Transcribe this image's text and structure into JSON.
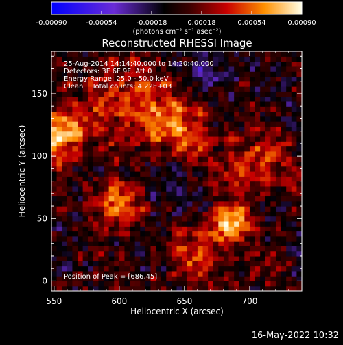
{
  "chart_data": {
    "type": "heatmap",
    "title": "Reconstructed RHESSI Image",
    "info_lines": [
      "25-Aug-2014 14:14:40.000 to 14:20:40.000",
      "Detectors: 3F 6F 9F, Att 0",
      "Energy Range: 25.0 - 50.0 keV",
      "Clean    Total counts: 4.22E+03"
    ],
    "peak_label": "Position of Peak = [686,45]",
    "peak": [
      686,
      45
    ],
    "xlabel": "Heliocentric X (arcsec)",
    "ylabel": "Heliocentric Y (arcsec)",
    "xlim": [
      548,
      740
    ],
    "ylim": [
      -8,
      184
    ],
    "xticks": [
      550,
      600,
      650,
      700
    ],
    "yticks": [
      0,
      50,
      100,
      150
    ],
    "colorbar": {
      "range": [
        -0.0009,
        0.0009
      ],
      "ticks": [
        "-0.00090",
        "-0.00054",
        "-0.00018",
        "0.00018",
        "0.00054",
        "0.00090"
      ],
      "unit_label": "(photons cm⁻² s⁻¹ asec⁻²)"
    },
    "sources": [
      {
        "x": 686,
        "y": 45,
        "value": 0.0009,
        "sigma": 10
      },
      {
        "x": 553,
        "y": 118,
        "value": 0.0008,
        "sigma": 14
      },
      {
        "x": 598,
        "y": 62,
        "value": 0.0007,
        "sigma": 13
      },
      {
        "x": 640,
        "y": 125,
        "value": 0.0005,
        "sigma": 22
      },
      {
        "x": 600,
        "y": 150,
        "value": 0.0004,
        "sigma": 20
      },
      {
        "x": 705,
        "y": 90,
        "value": 0.00038,
        "sigma": 18
      },
      {
        "x": 660,
        "y": 25,
        "value": 0.00035,
        "sigma": 16
      }
    ],
    "negative_regions": [
      {
        "x": 670,
        "y": 172,
        "value": -0.0003,
        "sigma": 14
      },
      {
        "x": 630,
        "y": 85,
        "value": -0.00022,
        "sigma": 16
      }
    ],
    "pixel_size_arcsec": 4
  },
  "footer": {
    "timestamp": "16-May-2022 10:32"
  }
}
